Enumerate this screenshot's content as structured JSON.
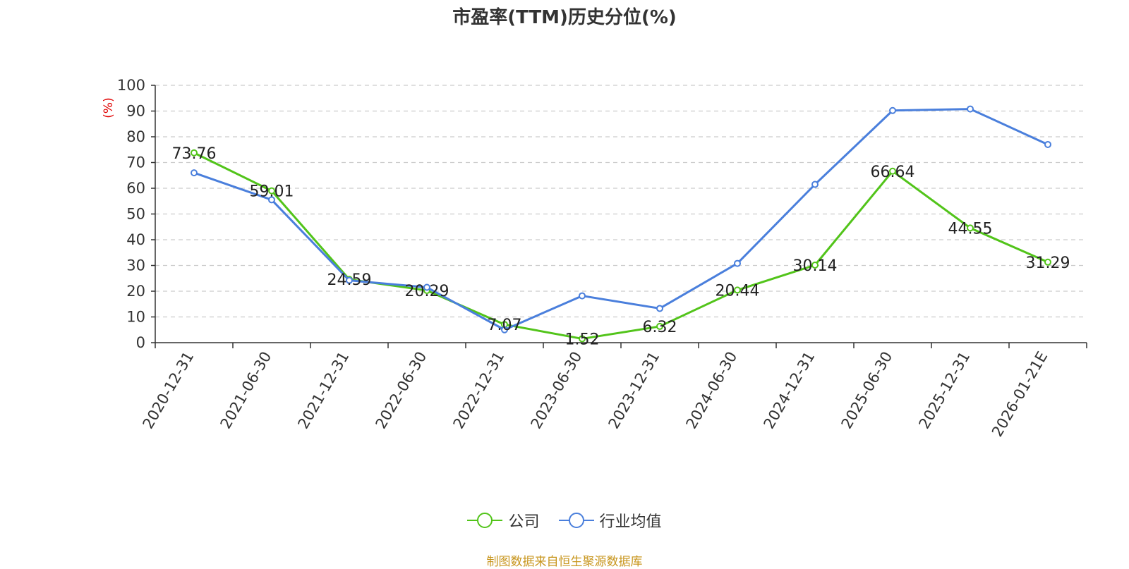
{
  "chart_data": {
    "type": "line",
    "title": "市盈率(TTM)历史分位(%)",
    "ylabel": "(%)",
    "xlabel": "",
    "ylim": [
      0,
      100
    ],
    "yticks": [
      0,
      10,
      20,
      30,
      40,
      50,
      60,
      70,
      80,
      90,
      100
    ],
    "grid": "horizontal-dashed",
    "legend_position": "bottom",
    "categories": [
      "2020-12-31",
      "2021-06-30",
      "2021-12-31",
      "2022-06-30",
      "2022-12-31",
      "2023-06-30",
      "2023-12-31",
      "2024-06-30",
      "2024-12-31",
      "2025-06-30",
      "2025-12-31",
      "2026-01-21E"
    ],
    "series": [
      {
        "name": "公司",
        "color": "#52c41a",
        "values": [
          73.76,
          59.01,
          24.59,
          20.29,
          7.07,
          1.52,
          6.32,
          20.44,
          30.14,
          66.64,
          44.55,
          31.29
        ],
        "labels": [
          "73.76",
          "59.01",
          "24.59",
          "20.29",
          "7.07",
          "1.52",
          "6.32",
          "20.44",
          "30.14",
          "66.64",
          "44.55",
          "31.29"
        ]
      },
      {
        "name": "行业均值",
        "color": "#4a7fdc",
        "values": [
          66.0,
          55.5,
          24.2,
          21.5,
          5.0,
          18.2,
          13.3,
          30.8,
          61.5,
          90.2,
          90.8,
          77.0
        ]
      }
    ]
  },
  "source_note": "制图数据来自恒生聚源数据库"
}
